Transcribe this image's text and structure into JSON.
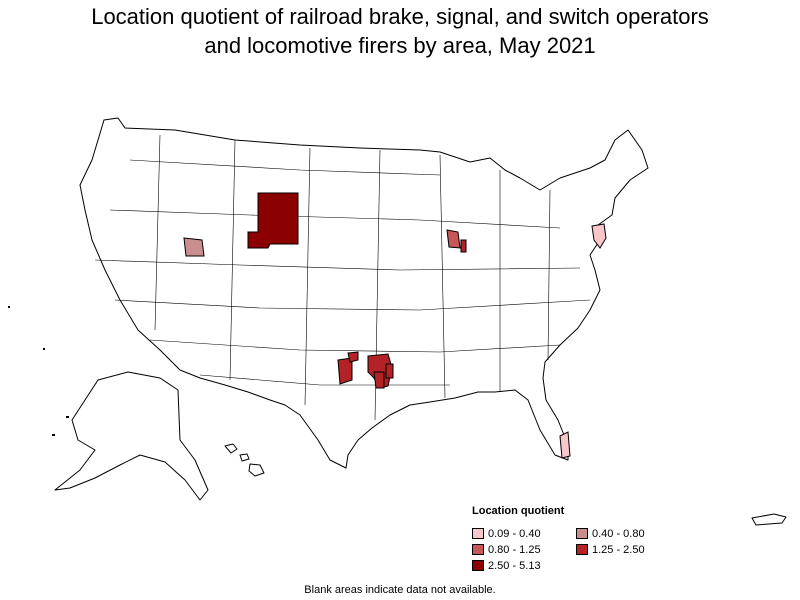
{
  "title": {
    "line1": "Location quotient of railroad brake, signal, and switch operators",
    "line2": "and locomotive firers by area, May 2021"
  },
  "legend": {
    "title": "Location quotient",
    "items": [
      {
        "label": "0.09 - 0.40",
        "color": "#f9c6c9"
      },
      {
        "label": "0.40 - 0.80",
        "color": "#c98e8e"
      },
      {
        "label": "0.80 - 1.25",
        "color": "#c8575a"
      },
      {
        "label": "1.25 - 2.50",
        "color": "#b22226"
      },
      {
        "label": "2.50 - 5.13",
        "color": "#8b0000"
      }
    ]
  },
  "footnote": "Blank areas indicate data not available.",
  "highlighted_areas": [
    {
      "region": "Wyoming (central/eastern)",
      "range": "2.50 - 5.13"
    },
    {
      "region": "Northern Utah",
      "range": "0.40 - 0.80"
    },
    {
      "region": "Northwestern Indiana",
      "range": "0.80 - 1.25"
    },
    {
      "region": "Central Indiana",
      "range": "1.25 - 2.50"
    },
    {
      "region": "Western Texas/Oklahoma border",
      "range": "1.25 - 2.50"
    },
    {
      "region": "North Texas",
      "range": "1.25 - 2.50"
    },
    {
      "region": "Eastern Pennsylvania / New Jersey",
      "range": "0.09 - 0.40"
    },
    {
      "region": "Southeastern Florida",
      "range": "0.09 - 0.40"
    }
  ]
}
